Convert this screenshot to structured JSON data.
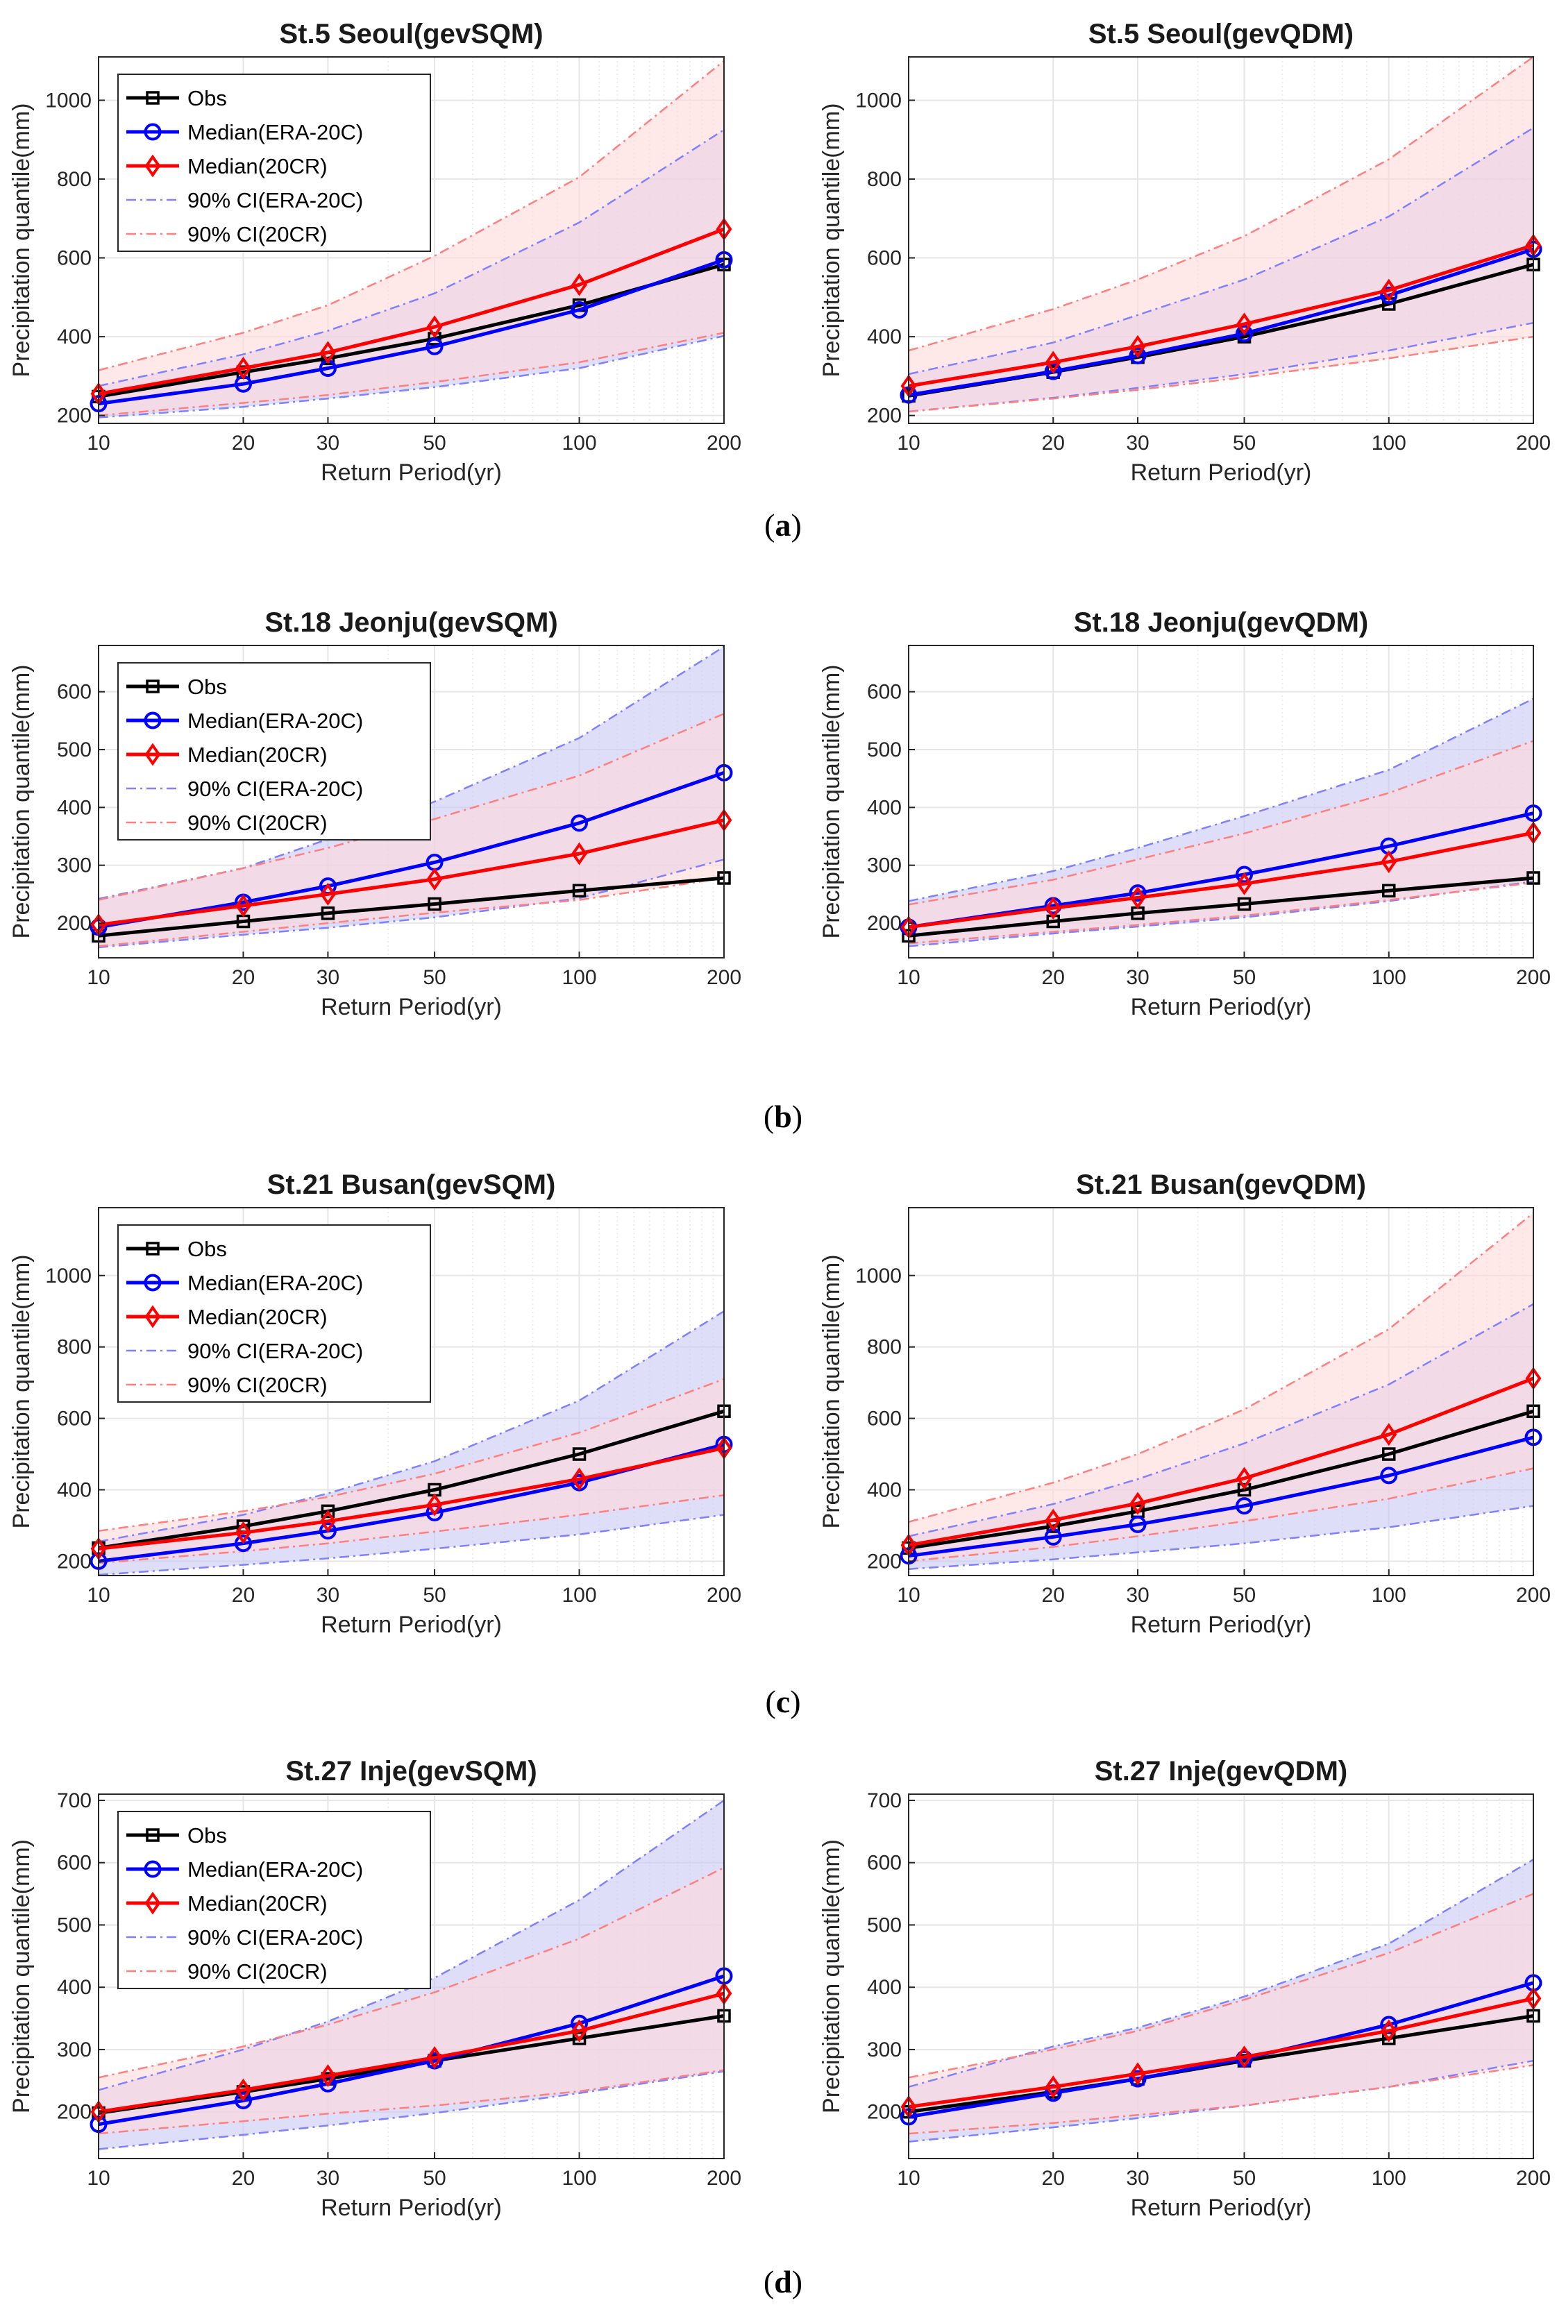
{
  "figure": {
    "subplot_labels": [
      {
        "open": "(",
        "letter": "a",
        "close": ")"
      },
      {
        "open": "(",
        "letter": "b",
        "close": ")"
      },
      {
        "open": "(",
        "letter": "c",
        "close": ")"
      },
      {
        "open": "(",
        "letter": "d",
        "close": ")"
      }
    ]
  },
  "colors": {
    "obs": "#000000",
    "era": "#0000ff",
    "cr": "#ff0000",
    "era_ci_line": "#8080ff",
    "cr_ci_line": "#ff7f7f",
    "era_fill": "#c8c8f5",
    "cr_fill": "#ffd9d9",
    "grid": "#e6e6e6"
  },
  "chart_data": [
    {
      "type": "line",
      "title": "St.5 Seoul(gevSQM)",
      "xlabel": "Return Period(yr)",
      "ylabel": "Precipitation quantile(mm)",
      "x": [
        10,
        20,
        30,
        50,
        100,
        200
      ],
      "xscale": "log",
      "xticks": [
        10,
        20,
        30,
        50,
        100,
        200
      ],
      "ylim": [
        180,
        1110
      ],
      "yticks": [
        200,
        400,
        600,
        800,
        1000
      ],
      "legend": true,
      "legend_loc": "upper-left",
      "grid": true,
      "series": [
        {
          "name": "Obs",
          "values": [
            248,
            310,
            345,
            395,
            480,
            583
          ]
        },
        {
          "name": "Median(ERA-20C)",
          "values": [
            230,
            280,
            320,
            375,
            468,
            595
          ]
        },
        {
          "name": "Median(20CR)",
          "values": [
            255,
            320,
            360,
            425,
            532,
            673
          ]
        }
      ],
      "ci": [
        {
          "name": "90% CI(ERA-20C)",
          "lower": [
            195,
            222,
            243,
            272,
            320,
            402
          ],
          "upper": [
            275,
            355,
            415,
            510,
            690,
            925
          ]
        },
        {
          "name": "90% CI(20CR)",
          "lower": [
            200,
            232,
            252,
            285,
            335,
            410
          ],
          "upper": [
            315,
            410,
            480,
            605,
            805,
            1100
          ]
        }
      ]
    },
    {
      "type": "line",
      "title": "St.5 Seoul(gevQDM)",
      "xlabel": "Return Period(yr)",
      "ylabel": "Precipitation quantile(mm)",
      "x": [
        10,
        20,
        30,
        50,
        100,
        200
      ],
      "xscale": "log",
      "xticks": [
        10,
        20,
        30,
        50,
        100,
        200
      ],
      "ylim": [
        180,
        1110
      ],
      "yticks": [
        200,
        400,
        600,
        800,
        1000
      ],
      "legend": false,
      "grid": true,
      "series": [
        {
          "name": "Obs",
          "values": [
            250,
            310,
            348,
            400,
            483,
            583
          ]
        },
        {
          "name": "Median(ERA-20C)",
          "values": [
            252,
            312,
            352,
            408,
            505,
            622
          ]
        },
        {
          "name": "Median(20CR)",
          "values": [
            275,
            335,
            375,
            432,
            518,
            632
          ]
        }
      ],
      "ci": [
        {
          "name": "90% CI(ERA-20C)",
          "lower": [
            210,
            245,
            270,
            305,
            365,
            435
          ],
          "upper": [
            305,
            385,
            455,
            545,
            705,
            930
          ]
        },
        {
          "name": "90% CI(20CR)",
          "lower": [
            210,
            243,
            265,
            297,
            345,
            400
          ],
          "upper": [
            365,
            470,
            545,
            655,
            850,
            1110
          ]
        }
      ]
    },
    {
      "type": "line",
      "title": "St.18 Jeonju(gevSQM)",
      "xlabel": "Return Period(yr)",
      "ylabel": "Precipitation quantile(mm)",
      "x": [
        10,
        20,
        30,
        50,
        100,
        200
      ],
      "xscale": "log",
      "xticks": [
        10,
        20,
        30,
        50,
        100,
        200
      ],
      "ylim": [
        140,
        680
      ],
      "yticks": [
        200,
        300,
        400,
        500,
        600
      ],
      "legend": true,
      "legend_loc": "upper-left",
      "grid": true,
      "series": [
        {
          "name": "Obs",
          "values": [
            178,
            203,
            217,
            233,
            256,
            278
          ]
        },
        {
          "name": "Median(ERA-20C)",
          "values": [
            193,
            236,
            264,
            305,
            373,
            460
          ]
        },
        {
          "name": "Median(20CR)",
          "values": [
            197,
            230,
            250,
            276,
            320,
            378
          ]
        }
      ],
      "ci": [
        {
          "name": "90% CI(ERA-20C)",
          "lower": [
            158,
            180,
            192,
            210,
            243,
            310
          ],
          "upper": [
            242,
            295,
            345,
            410,
            520,
            678
          ]
        },
        {
          "name": "90% CI(20CR)",
          "lower": [
            160,
            185,
            200,
            218,
            240,
            278
          ],
          "upper": [
            240,
            295,
            330,
            380,
            455,
            562
          ]
        }
      ]
    },
    {
      "type": "line",
      "title": "St.18 Jeonju(gevQDM)",
      "xlabel": "Return Period(yr)",
      "ylabel": "Precipitation quantile(mm)",
      "x": [
        10,
        20,
        30,
        50,
        100,
        200
      ],
      "xscale": "log",
      "xticks": [
        10,
        20,
        30,
        50,
        100,
        200
      ],
      "ylim": [
        140,
        680
      ],
      "yticks": [
        200,
        300,
        400,
        500,
        600
      ],
      "legend": false,
      "grid": true,
      "series": [
        {
          "name": "Obs",
          "values": [
            178,
            203,
            217,
            233,
            256,
            278
          ]
        },
        {
          "name": "Median(ERA-20C)",
          "values": [
            193,
            230,
            252,
            284,
            333,
            390
          ]
        },
        {
          "name": "Median(20CR)",
          "values": [
            193,
            226,
            244,
            268,
            306,
            356
          ]
        }
      ],
      "ci": [
        {
          "name": "90% CI(ERA-20C)",
          "lower": [
            160,
            182,
            194,
            210,
            238,
            272
          ],
          "upper": [
            238,
            290,
            330,
            385,
            465,
            588
          ]
        },
        {
          "name": "90% CI(20CR)",
          "lower": [
            165,
            185,
            197,
            213,
            240,
            270
          ],
          "upper": [
            232,
            275,
            310,
            355,
            425,
            515
          ]
        }
      ]
    },
    {
      "type": "line",
      "title": "St.21 Busan(gevSQM)",
      "xlabel": "Return Period(yr)",
      "ylabel": "Precipitation quantile(mm)",
      "x": [
        10,
        20,
        30,
        50,
        100,
        200
      ],
      "xscale": "log",
      "xticks": [
        10,
        20,
        30,
        50,
        100,
        200
      ],
      "ylim": [
        160,
        1190
      ],
      "yticks": [
        200,
        400,
        600,
        800,
        1000
      ],
      "legend": true,
      "legend_loc": "upper-left",
      "grid": true,
      "series": [
        {
          "name": "Obs",
          "values": [
            237,
            298,
            340,
            400,
            500,
            620
          ]
        },
        {
          "name": "Median(ERA-20C)",
          "values": [
            200,
            250,
            285,
            336,
            420,
            527
          ]
        },
        {
          "name": "Median(20CR)",
          "values": [
            235,
            280,
            312,
            358,
            430,
            517
          ]
        }
      ],
      "ci": [
        {
          "name": "90% CI(ERA-20C)",
          "lower": [
            162,
            190,
            208,
            235,
            275,
            330
          ],
          "upper": [
            255,
            330,
            390,
            480,
            650,
            900
          ]
        },
        {
          "name": "90% CI(20CR)",
          "lower": [
            195,
            228,
            250,
            283,
            330,
            385
          ],
          "upper": [
            285,
            340,
            380,
            445,
            560,
            710
          ]
        }
      ]
    },
    {
      "type": "line",
      "title": "St.21 Busan(gevQDM)",
      "xlabel": "Return Period(yr)",
      "ylabel": "Precipitation quantile(mm)",
      "x": [
        10,
        20,
        30,
        50,
        100,
        200
      ],
      "xscale": "log",
      "xticks": [
        10,
        20,
        30,
        50,
        100,
        200
      ],
      "ylim": [
        160,
        1190
      ],
      "yticks": [
        200,
        400,
        600,
        800,
        1000
      ],
      "legend": false,
      "grid": true,
      "series": [
        {
          "name": "Obs",
          "values": [
            237,
            298,
            340,
            400,
            500,
            620
          ]
        },
        {
          "name": "Median(ERA-20C)",
          "values": [
            215,
            268,
            303,
            355,
            440,
            547
          ]
        },
        {
          "name": "Median(20CR)",
          "values": [
            245,
            315,
            362,
            432,
            555,
            712
          ]
        }
      ],
      "ci": [
        {
          "name": "90% CI(ERA-20C)",
          "lower": [
            178,
            205,
            225,
            250,
            295,
            355
          ],
          "upper": [
            270,
            360,
            430,
            530,
            695,
            920
          ]
        },
        {
          "name": "90% CI(20CR)",
          "lower": [
            200,
            240,
            270,
            312,
            375,
            460
          ],
          "upper": [
            310,
            420,
            500,
            625,
            850,
            1175
          ]
        }
      ]
    },
    {
      "type": "line",
      "title": "St.27 Inje(gevSQM)",
      "xlabel": "Return Period(yr)",
      "ylabel": "Precipitation quantile(mm)",
      "x": [
        10,
        20,
        30,
        50,
        100,
        200
      ],
      "xscale": "log",
      "xticks": [
        10,
        20,
        30,
        50,
        100,
        200
      ],
      "ylim": [
        125,
        710
      ],
      "yticks": [
        200,
        300,
        400,
        500,
        600,
        700
      ],
      "legend": true,
      "legend_loc": "upper-left",
      "grid": true,
      "series": [
        {
          "name": "Obs",
          "values": [
            198,
            232,
            253,
            282,
            318,
            354
          ]
        },
        {
          "name": "Median(ERA-20C)",
          "values": [
            180,
            218,
            245,
            282,
            342,
            418
          ]
        },
        {
          "name": "Median(20CR)",
          "values": [
            200,
            235,
            258,
            287,
            330,
            390
          ]
        }
      ],
      "ci": [
        {
          "name": "90% CI(ERA-20C)",
          "lower": [
            140,
            163,
            178,
            198,
            230,
            265
          ],
          "upper": [
            235,
            300,
            345,
            415,
            540,
            700
          ]
        },
        {
          "name": "90% CI(20CR)",
          "lower": [
            165,
            185,
            197,
            210,
            233,
            267
          ],
          "upper": [
            255,
            305,
            340,
            392,
            478,
            592
          ]
        }
      ]
    },
    {
      "type": "line",
      "title": "St.27 Inje(gevQDM)",
      "xlabel": "Return Period(yr)",
      "ylabel": "Precipitation quantile(mm)",
      "x": [
        10,
        20,
        30,
        50,
        100,
        200
      ],
      "xscale": "log",
      "xticks": [
        10,
        20,
        30,
        50,
        100,
        200
      ],
      "ylim": [
        125,
        710
      ],
      "yticks": [
        200,
        300,
        400,
        500,
        600,
        700
      ],
      "legend": false,
      "grid": true,
      "series": [
        {
          "name": "Obs",
          "values": [
            200,
            232,
            253,
            282,
            318,
            354
          ]
        },
        {
          "name": "Median(ERA-20C)",
          "values": [
            192,
            230,
            253,
            285,
            340,
            407
          ]
        },
        {
          "name": "Median(20CR)",
          "values": [
            208,
            240,
            261,
            288,
            330,
            382
          ]
        }
      ],
      "ci": [
        {
          "name": "90% CI(ERA-20C)",
          "lower": [
            152,
            175,
            190,
            210,
            240,
            282
          ],
          "upper": [
            240,
            305,
            335,
            385,
            470,
            605
          ]
        },
        {
          "name": "90% CI(20CR)",
          "lower": [
            165,
            182,
            195,
            210,
            240,
            275
          ],
          "upper": [
            255,
            300,
            330,
            380,
            455,
            550
          ]
        }
      ]
    }
  ]
}
